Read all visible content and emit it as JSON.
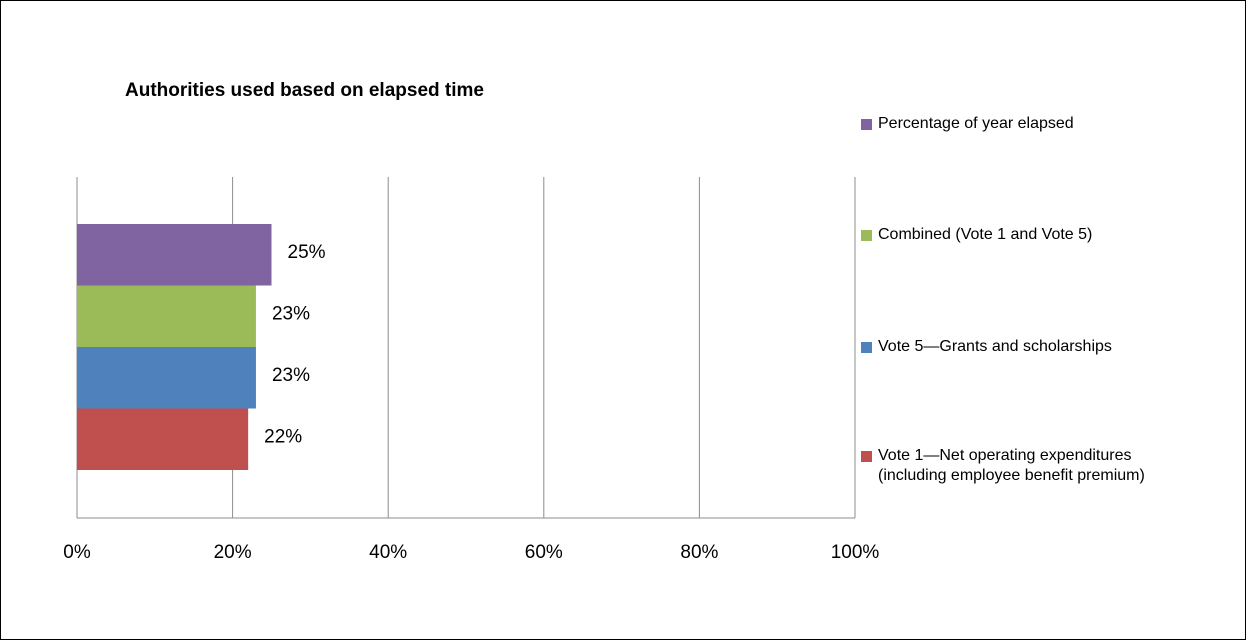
{
  "chart_data": {
    "type": "bar",
    "orientation": "horizontal",
    "title": "Authorities used based on elapsed time",
    "xlabel": "",
    "ylabel": "",
    "xlim": [
      0,
      100
    ],
    "x_ticks": [
      "0%",
      "20%",
      "40%",
      "60%",
      "80%",
      "100%"
    ],
    "grid": "vertical",
    "legend_position": "right",
    "series": [
      {
        "name": "Percentage of year elapsed",
        "value": 25,
        "label": "25%",
        "color": "#8064a2"
      },
      {
        "name": "Combined (Vote 1 and Vote 5)",
        "value": 23,
        "label": "23%",
        "color": "#9bbb59"
      },
      {
        "name": "Vote 5—Grants and scholarships",
        "value": 23,
        "label": "23%",
        "color": "#4f81bd"
      },
      {
        "name": "Vote 1—Net operating expenditures\n(including employee benefit premium)",
        "value": 22,
        "label": "22%",
        "color": "#c0504d"
      }
    ]
  }
}
